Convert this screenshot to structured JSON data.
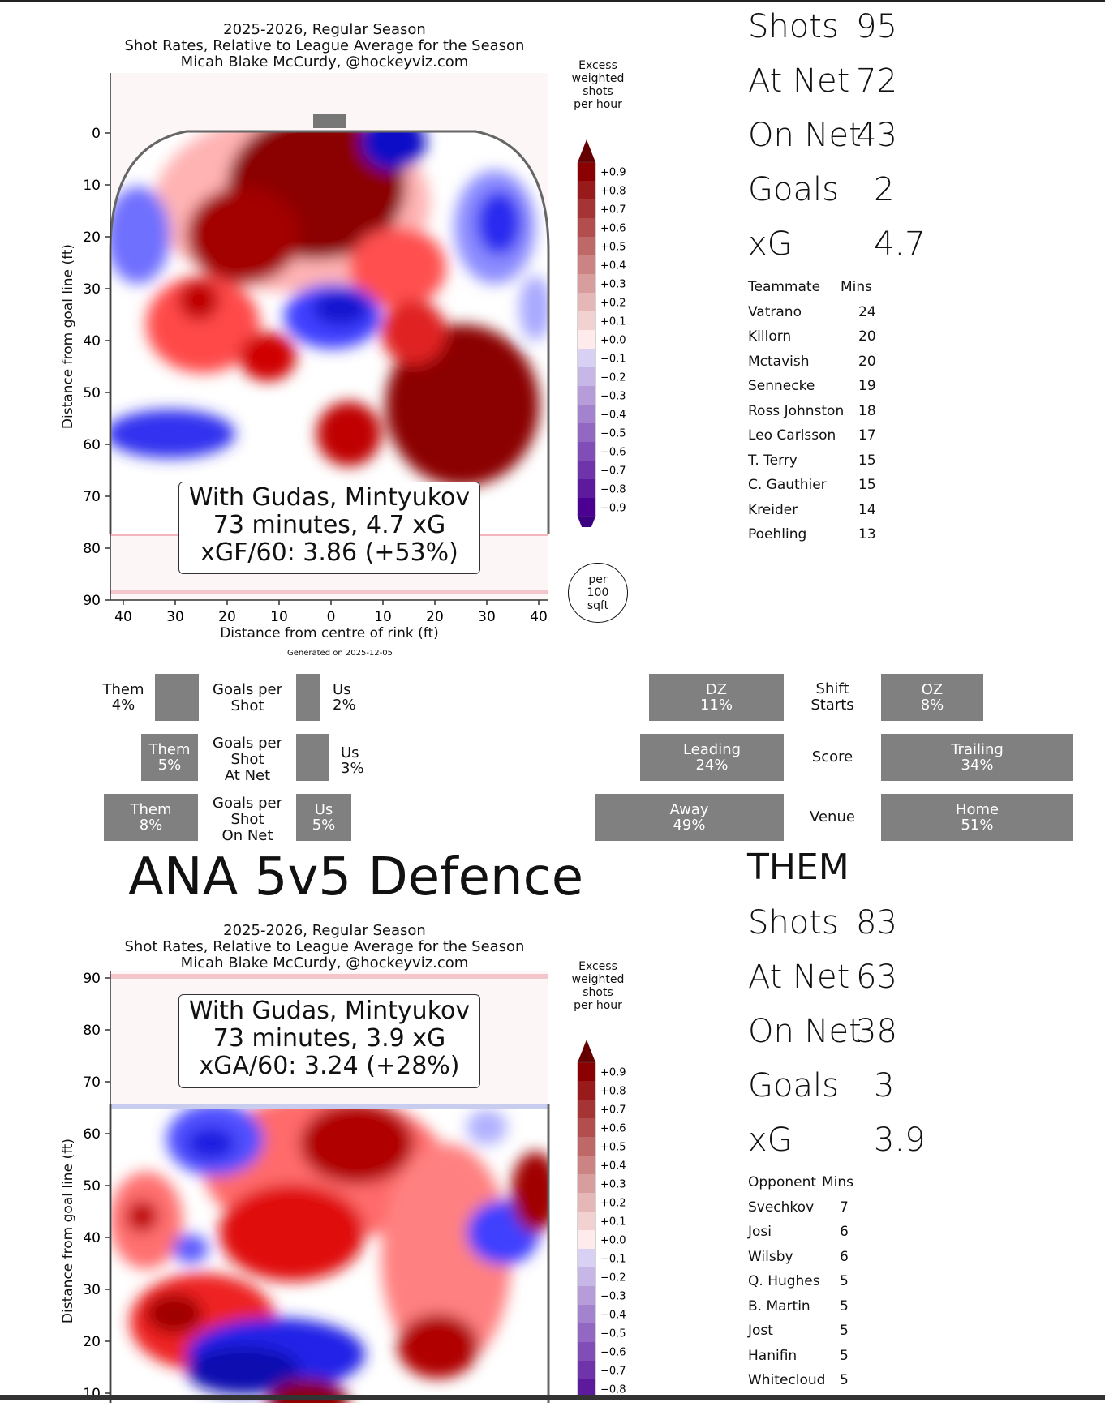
{
  "offense": {
    "title_lines": [
      "2025-2026, Regular Season",
      "Shot Rates, Relative to League Average for the Season",
      "Micah Blake McCurdy, @hockeyviz.com"
    ],
    "colorbar_title": [
      "Excess",
      "weighted",
      "shots",
      "per hour"
    ],
    "ylabel": "Distance from goal line (ft)",
    "xlabel": "Distance from centre of rink (ft)",
    "box_lines": [
      "With Gudas, Mintyukov",
      "73 minutes, 4.7 xG",
      "xGF/60: 3.86 (+53%)"
    ],
    "generated": "Generated on 2025-12-05",
    "per_circle": [
      "per",
      "100",
      "sqft"
    ],
    "stats": [
      {
        "label": "Shots",
        "value": "95"
      },
      {
        "label": "At Net",
        "value": "72"
      },
      {
        "label": "On Net",
        "value": "43"
      },
      {
        "label": "Goals",
        "value": "2"
      },
      {
        "label": "xG",
        "value": "4.7"
      }
    ],
    "table_header": [
      "Teammate",
      "Mins"
    ],
    "table_rows": [
      [
        "Vatrano",
        "24"
      ],
      [
        "Killorn",
        "20"
      ],
      [
        "Mctavish",
        "20"
      ],
      [
        "Sennecke",
        "19"
      ],
      [
        "Ross Johnston",
        "18"
      ],
      [
        "Leo Carlsson",
        "17"
      ],
      [
        "T. Terry",
        "15"
      ],
      [
        "C. Gauthier",
        "15"
      ],
      [
        "Kreider",
        "14"
      ],
      [
        "Poehling",
        "13"
      ]
    ]
  },
  "middle": {
    "goals": [
      {
        "label": "Goals per\nShot",
        "them": "Them\n4%",
        "us": "Us\n2%"
      },
      {
        "label": "Goals per\nShot\nAt Net",
        "them": "Them\n5%",
        "us": "Us\n3%"
      },
      {
        "label": "Goals per\nShot\nOn Net",
        "them": "Them\n8%",
        "us": "Us\n5%"
      }
    ],
    "context": [
      {
        "label": "Shift\nStarts",
        "left": "DZ\n11%",
        "right": "OZ\n8%"
      },
      {
        "label": "Score",
        "left": "Leading\n24%",
        "right": "Trailing\n34%"
      },
      {
        "label": "Venue",
        "left": "Away\n49%",
        "right": "Home\n51%"
      }
    ],
    "heading": "ANA 5v5 Defence"
  },
  "defense": {
    "title_lines": [
      "2025-2026, Regular Season",
      "Shot Rates, Relative to League Average for the Season",
      "Micah Blake McCurdy, @hockeyviz.com"
    ],
    "colorbar_title": [
      "Excess",
      "weighted",
      "shots",
      "per hour"
    ],
    "ylabel": "Distance from goal line (ft)",
    "box_lines": [
      "With Gudas, Mintyukov",
      "73 minutes, 3.9 xG",
      "xGA/60: 3.24 (+28%)"
    ],
    "them_label": "THEM",
    "stats": [
      {
        "label": "Shots",
        "value": "83"
      },
      {
        "label": "At Net",
        "value": "63"
      },
      {
        "label": "On Net",
        "value": "38"
      },
      {
        "label": "Goals",
        "value": "3"
      },
      {
        "label": "xG",
        "value": "3.9"
      }
    ],
    "table_header": [
      "Opponent",
      "Mins"
    ],
    "table_rows": [
      [
        "Svechkov",
        "7"
      ],
      [
        "Josi",
        "6"
      ],
      [
        "Wilsby",
        "6"
      ],
      [
        "Q. Hughes",
        "5"
      ],
      [
        "B. Martin",
        "5"
      ],
      [
        "Jost",
        "5"
      ],
      [
        "Hanifin",
        "5"
      ],
      [
        "Whitecloud",
        "5"
      ]
    ]
  },
  "chart_data": [
    {
      "type": "heatmap",
      "title": "2025-2026, Regular Season / Shot Rates, Relative to League Average for the Season",
      "xlabel": "Distance from centre of rink (ft)",
      "ylabel": "Distance from goal line (ft)",
      "x_ticks": [
        40,
        30,
        20,
        10,
        0,
        10,
        20,
        30,
        40
      ],
      "y_ticks": [
        0,
        10,
        20,
        30,
        40,
        50,
        60,
        70,
        80,
        90
      ],
      "colorbar_ticks": [
        "+0.9",
        "+0.8",
        "+0.7",
        "+0.6",
        "+0.5",
        "+0.4",
        "+0.3",
        "+0.2",
        "+0.1",
        "+0.0",
        "−0.1",
        "−0.2",
        "−0.3",
        "−0.4",
        "−0.5",
        "−0.6",
        "−0.7",
        "−0.8",
        "−0.9"
      ]
    },
    {
      "type": "heatmap",
      "title": "2025-2026, Regular Season / Shot Rates, Relative to League Average for the Season (defence)",
      "ylabel": "Distance from goal line (ft)",
      "y_ticks": [
        90,
        80,
        70,
        60,
        50,
        40,
        30,
        20,
        10
      ],
      "colorbar_ticks": [
        "+0.9",
        "+0.8",
        "+0.7",
        "+0.6",
        "+0.5",
        "+0.4",
        "+0.3",
        "+0.2",
        "+0.1",
        "+0.0",
        "−0.1",
        "−0.2",
        "−0.3",
        "−0.4",
        "−0.5",
        "−0.6",
        "−0.7",
        "−0.8"
      ]
    }
  ]
}
